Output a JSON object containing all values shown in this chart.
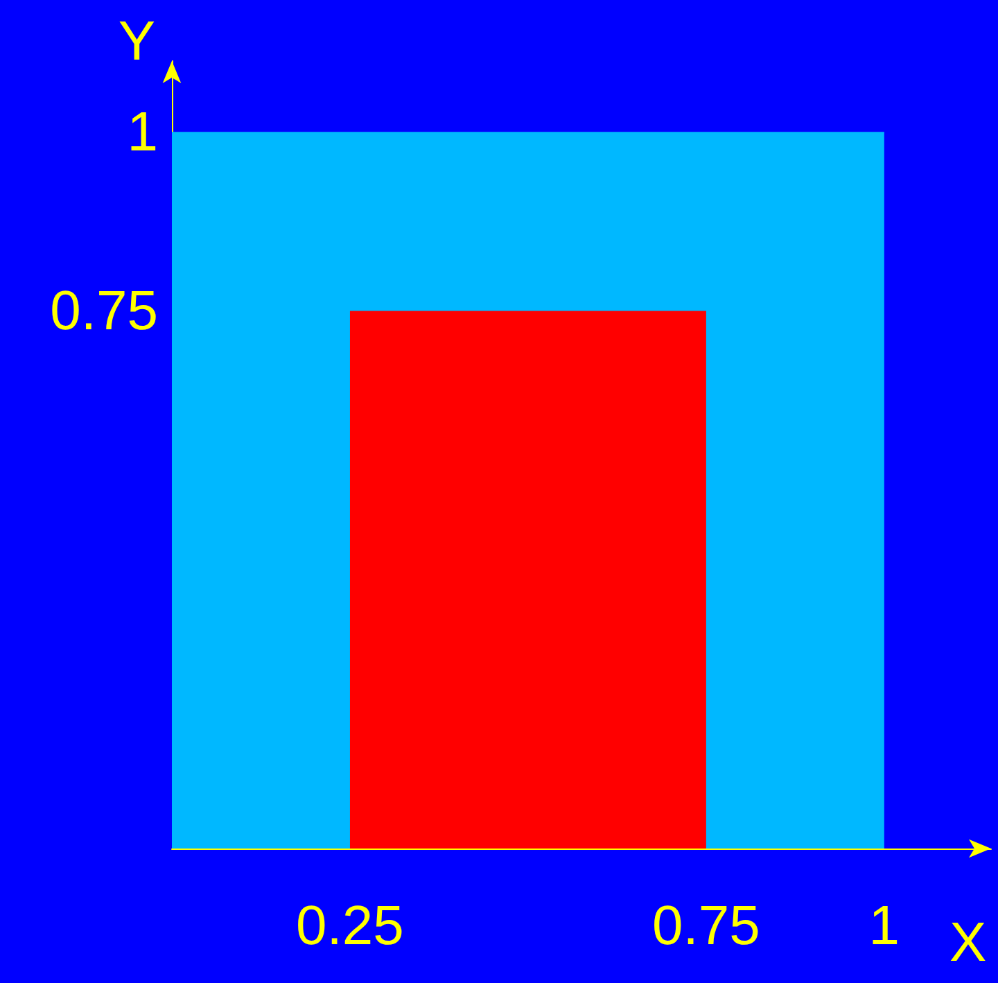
{
  "chart_data": {
    "type": "area",
    "xlabel": "X",
    "ylabel": "Y",
    "marker": "none",
    "series": [
      {
        "color": "#00b8ff",
        "x": [
          0,
          1
        ],
        "values": [
          1,
          1
        ]
      },
      {
        "color": "#ff0000",
        "x": [
          0.25,
          0.75
        ],
        "values": [
          0.75,
          0.75
        ]
      }
    ],
    "xlim": [
      0,
      1.15
    ],
    "ylim": [
      0,
      1.1
    ],
    "xticks": [
      0.25,
      0.75,
      1
    ],
    "yticks": [
      0.75,
      1
    ],
    "grid": false
  }
}
